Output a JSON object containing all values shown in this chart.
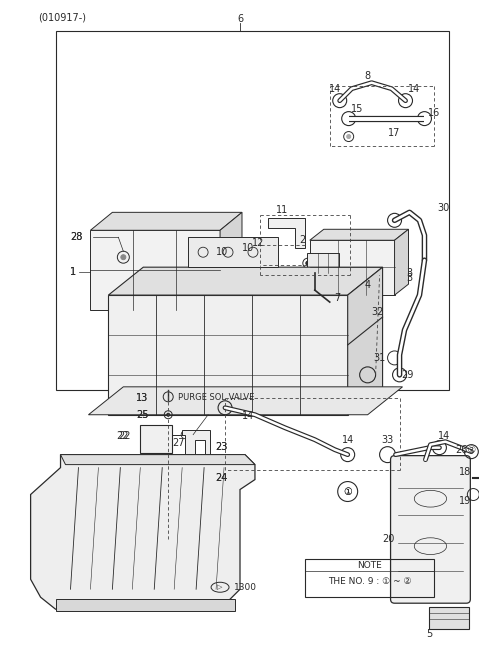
{
  "bg_color": "#ffffff",
  "line_color": "#2a2a2a",
  "fig_width": 4.8,
  "fig_height": 6.55,
  "dpi": 100,
  "header": "(010917-)",
  "note_text": "NOTE\nTHE NO. 9 : ① ~ ②"
}
